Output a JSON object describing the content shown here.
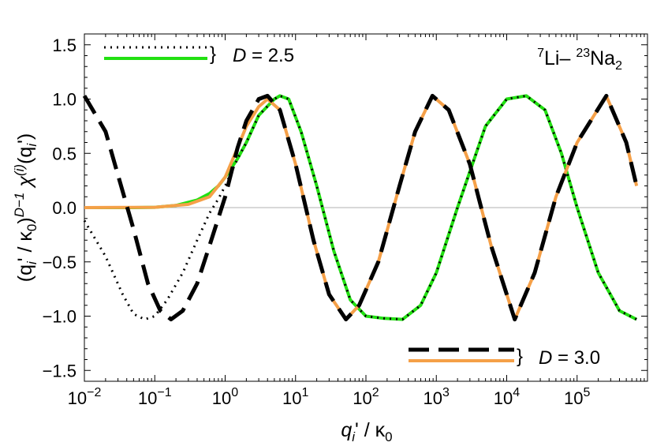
{
  "chart_data": {
    "type": "line",
    "x_scale": "log",
    "xlim": [
      0.01,
      1000000
    ],
    "ylim": [
      -1.6,
      1.6
    ],
    "x_ticks": [
      {
        "value": 0.01,
        "base": "10",
        "exp": "−2"
      },
      {
        "value": 0.1,
        "base": "10",
        "exp": "−1"
      },
      {
        "value": 1,
        "base": "10",
        "exp": "0"
      },
      {
        "value": 10,
        "base": "10",
        "exp": "1"
      },
      {
        "value": 100,
        "base": "10",
        "exp": "2"
      },
      {
        "value": 1000,
        "base": "10",
        "exp": "3"
      },
      {
        "value": 10000,
        "base": "10",
        "exp": "4"
      },
      {
        "value": 100000,
        "base": "10",
        "exp": "5"
      }
    ],
    "y_ticks": [
      {
        "value": 1.5,
        "label": "1.5"
      },
      {
        "value": 1.0,
        "label": "1.0"
      },
      {
        "value": 0.5,
        "label": "0.5"
      },
      {
        "value": 0.0,
        "label": "0.0"
      },
      {
        "value": -0.5,
        "label": "−0.5"
      },
      {
        "value": -1.0,
        "label": "−1.0"
      },
      {
        "value": -1.5,
        "label": "−1.5"
      }
    ],
    "xlabel": {
      "q": "q",
      "sub": "i",
      "rest": "' / κ",
      "sub2": "0"
    },
    "ylabel": {
      "p1": "(q",
      "p1sub": "i",
      "p2": "' / κ",
      "p2sub": "0",
      "p3": ")",
      "p3sup": "D−1",
      "p4": "  χ",
      "p4sup": "(i)",
      "p5": "(q",
      "p5sub": "i",
      "p6": "')"
    },
    "annotation": {
      "sup1": "7",
      "t1": "Li– ",
      "sup2": "23",
      "t2": "Na",
      "sub2": "2"
    },
    "legend": [
      {
        "label_var": "D",
        "label_val": " = 2.5",
        "lines": [
          {
            "color": "#000000",
            "style": "dotted"
          },
          {
            "color": "#22e012",
            "style": "solid"
          }
        ]
      },
      {
        "label_var": "D",
        "label_val": " = 3.0",
        "lines": [
          {
            "color": "#000000",
            "style": "dashed"
          },
          {
            "color": "#f5a048",
            "style": "solid"
          }
        ]
      }
    ],
    "series": [
      {
        "color": "#22e012",
        "style": "solid",
        "points": [
          [
            0.01,
            0.0
          ],
          [
            0.05,
            0.0
          ],
          [
            0.1,
            0.003
          ],
          [
            0.2,
            0.02
          ],
          [
            0.4,
            0.07
          ],
          [
            0.6,
            0.13
          ],
          [
            0.8,
            0.2
          ],
          [
            1.0,
            0.28
          ],
          [
            1.5,
            0.45
          ],
          [
            2.0,
            0.6
          ],
          [
            3.0,
            0.85
          ],
          [
            5.0,
            1.0
          ],
          [
            6.0,
            1.03
          ],
          [
            8.0,
            1.0
          ],
          [
            12,
            0.7
          ],
          [
            20,
            0.2
          ],
          [
            35,
            -0.4
          ],
          [
            60,
            -0.85
          ],
          [
            100,
            -1.0
          ],
          [
            180,
            -1.02
          ],
          [
            331,
            -1.03
          ],
          [
            600,
            -0.9
          ],
          [
            1000,
            -0.6
          ],
          [
            2000,
            0.0
          ],
          [
            5000,
            0.75
          ],
          [
            10000,
            1.0
          ],
          [
            19000,
            1.03
          ],
          [
            35000,
            0.9
          ],
          [
            60000,
            0.5
          ],
          [
            100000,
            0.0
          ],
          [
            200000,
            -0.6
          ],
          [
            400000,
            -0.95
          ],
          [
            700000,
            -1.03
          ]
        ]
      },
      {
        "color": "#000000",
        "style": "dotted",
        "points": [
          [
            0.01,
            -0.12
          ],
          [
            0.02,
            -0.45
          ],
          [
            0.035,
            -0.8
          ],
          [
            0.05,
            -0.98
          ],
          [
            0.072,
            -1.03
          ],
          [
            0.1,
            -1.0
          ],
          [
            0.15,
            -0.85
          ],
          [
            0.25,
            -0.6
          ],
          [
            0.4,
            -0.3
          ],
          [
            0.6,
            -0.05
          ],
          [
            0.8,
            0.08
          ],
          [
            1.0,
            0.2
          ],
          [
            1.5,
            0.45
          ],
          [
            2.0,
            0.6
          ],
          [
            3.0,
            0.85
          ],
          [
            5.0,
            1.0
          ],
          [
            6.0,
            1.03
          ],
          [
            8.0,
            1.0
          ],
          [
            12,
            0.7
          ],
          [
            20,
            0.2
          ],
          [
            35,
            -0.4
          ],
          [
            60,
            -0.85
          ],
          [
            100,
            -1.0
          ],
          [
            180,
            -1.02
          ],
          [
            331,
            -1.03
          ],
          [
            600,
            -0.9
          ],
          [
            1000,
            -0.6
          ],
          [
            2000,
            0.0
          ],
          [
            5000,
            0.75
          ],
          [
            10000,
            1.0
          ],
          [
            19000,
            1.03
          ],
          [
            35000,
            0.9
          ],
          [
            60000,
            0.5
          ],
          [
            100000,
            0.0
          ],
          [
            200000,
            -0.6
          ],
          [
            400000,
            -0.95
          ],
          [
            700000,
            -1.03
          ]
        ]
      },
      {
        "color": "#f5a048",
        "style": "solid",
        "points": [
          [
            0.01,
            0.0
          ],
          [
            0.1,
            0.003
          ],
          [
            0.3,
            0.03
          ],
          [
            0.6,
            0.1
          ],
          [
            1.0,
            0.28
          ],
          [
            1.5,
            0.55
          ],
          [
            2.0,
            0.75
          ],
          [
            3.0,
            0.93
          ],
          [
            4.0,
            1.0
          ],
          [
            6.0,
            0.9
          ],
          [
            10,
            0.4
          ],
          [
            18,
            -0.3
          ],
          [
            30,
            -0.8
          ],
          [
            52,
            -1.03
          ],
          [
            80,
            -0.9
          ],
          [
            150,
            -0.5
          ],
          [
            300,
            0.2
          ],
          [
            500,
            0.7
          ],
          [
            880,
            1.03
          ],
          [
            1500,
            0.9
          ],
          [
            3000,
            0.4
          ],
          [
            6000,
            -0.35
          ],
          [
            13000,
            -1.03
          ],
          [
            25000,
            -0.6
          ],
          [
            50000,
            0.1
          ],
          [
            100000,
            0.6
          ],
          [
            260000,
            1.03
          ],
          [
            500000,
            0.6
          ],
          [
            700000,
            0.2
          ]
        ]
      },
      {
        "color": "#000000",
        "style": "dashed",
        "points": [
          [
            0.01,
            1.03
          ],
          [
            0.02,
            0.7
          ],
          [
            0.03,
            0.3
          ],
          [
            0.05,
            -0.2
          ],
          [
            0.08,
            -0.7
          ],
          [
            0.12,
            -0.95
          ],
          [
            0.17,
            -1.03
          ],
          [
            0.25,
            -0.95
          ],
          [
            0.4,
            -0.7
          ],
          [
            0.6,
            -0.35
          ],
          [
            1.0,
            0.1
          ],
          [
            1.5,
            0.55
          ],
          [
            2.0,
            0.8
          ],
          [
            3.0,
            1.0
          ],
          [
            4.0,
            1.03
          ],
          [
            6.0,
            0.9
          ],
          [
            10,
            0.4
          ],
          [
            18,
            -0.3
          ],
          [
            30,
            -0.8
          ],
          [
            52,
            -1.03
          ],
          [
            80,
            -0.9
          ],
          [
            150,
            -0.5
          ],
          [
            300,
            0.2
          ],
          [
            500,
            0.7
          ],
          [
            880,
            1.03
          ],
          [
            1500,
            0.9
          ],
          [
            3000,
            0.4
          ],
          [
            6000,
            -0.35
          ],
          [
            13000,
            -1.03
          ],
          [
            25000,
            -0.6
          ],
          [
            50000,
            0.1
          ],
          [
            100000,
            0.6
          ],
          [
            260000,
            1.03
          ],
          [
            500000,
            0.6
          ],
          [
            700000,
            0.2
          ]
        ]
      }
    ]
  }
}
